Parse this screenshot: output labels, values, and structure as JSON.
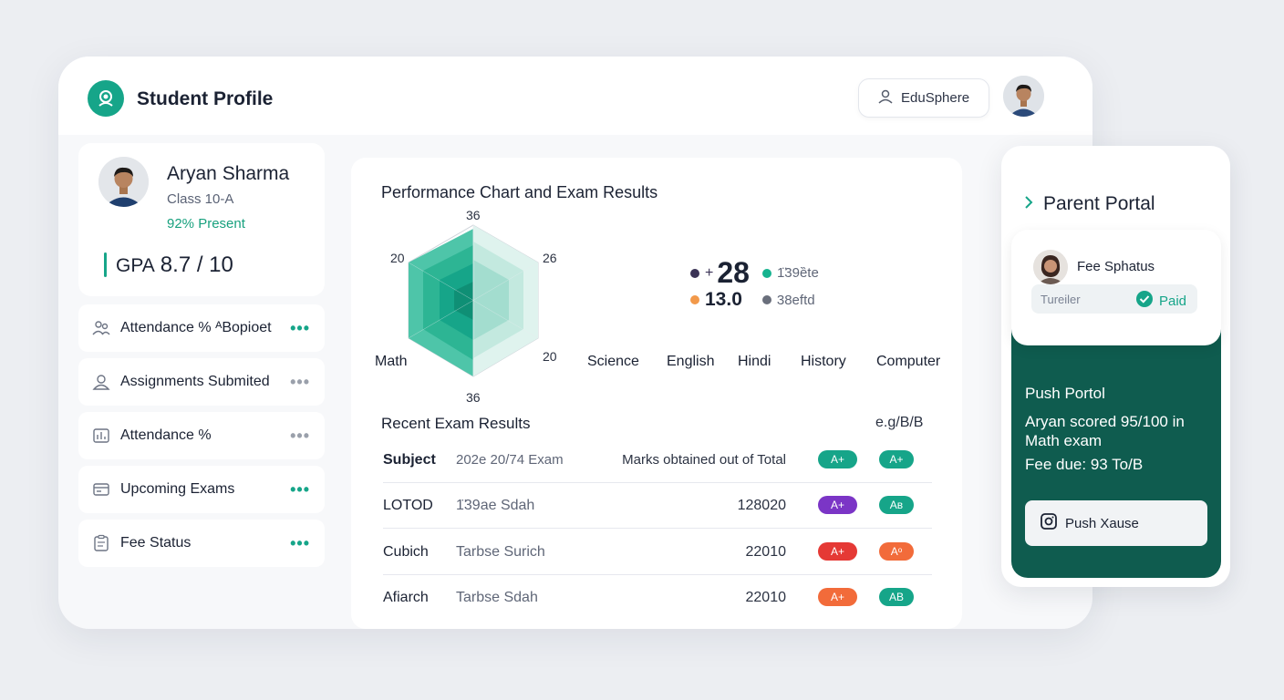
{
  "header": {
    "title": "Student Profile",
    "org_button": "EduSphere"
  },
  "profile": {
    "name": "Aryan Sharma",
    "class": "Class 10-A",
    "attendance": "92% Present",
    "gpa_label": "GPA",
    "gpa_value": "8.7 / 10"
  },
  "sidebar": {
    "items": [
      {
        "label": "Attendance % ᴬBopioet",
        "icon": "people-icon",
        "dots": "green"
      },
      {
        "label": "Assignments Submited",
        "icon": "user-icon",
        "dots": "gray"
      },
      {
        "label": "Attendance %",
        "icon": "chart-icon",
        "dots": "gray"
      },
      {
        "label": "Upcoming Exams",
        "icon": "card-icon",
        "dots": "green"
      },
      {
        "label": "Fee Status",
        "icon": "clipboard-icon",
        "dots": "green"
      }
    ]
  },
  "performance": {
    "title": "Performance Chart and Exam Results",
    "radar_labels": {
      "top": "36",
      "left": "20",
      "right": "26",
      "bottom_right": "20",
      "bottom": "36",
      "subject": "Math"
    },
    "stats": [
      {
        "prefix": "+",
        "value": "28",
        "color": "#3b3356",
        "tag": "1̈39ȅte",
        "tag_color": "#16b38f"
      },
      {
        "prefix": "",
        "value": "13.0",
        "color": "#f2994a",
        "tag": "38eftd",
        "tag_color": "#6a6f7c"
      }
    ],
    "subjects": [
      "Science",
      "English",
      "Hindi",
      "History",
      "Computer"
    ]
  },
  "exams": {
    "title": "Recent Exam Results",
    "grade_scale": "e.g/B/B",
    "header": {
      "subject": "Subject",
      "exam": "202e 20/74 Exam",
      "marks": "Marks obtained out of Total",
      "g1": "A+",
      "g1_color": "#16a589",
      "g2": "A+",
      "g2_color": "#16a589"
    },
    "rows": [
      {
        "subject": "LOTOD",
        "exam": "1̈39ae Sdah",
        "marks": "128020",
        "g1": "A+",
        "g1_color": "#7b35c6",
        "g2": "Aʙ",
        "g2_color": "#16a589"
      },
      {
        "subject": "Cubich",
        "exam": "Tarbse Surich",
        "marks": "22010",
        "g1": "A+",
        "g1_color": "#e53935",
        "g2": "Aᵒ",
        "g2_color": "#f26b3a"
      },
      {
        "subject": "Afiarch",
        "exam": "Tarbse Sdah",
        "marks": "22010",
        "g1": "A+",
        "g1_color": "#f26b3a",
        "g2": "AB",
        "g2_color": "#16a589"
      }
    ]
  },
  "parent_portal": {
    "title": "Parent Portal",
    "fee_title": "Fee Sphatus",
    "fee_label": "Tureiler",
    "fee_status": "Paid",
    "push_title": "Push Portol",
    "push_message": "Aryan scored 95/100 in Math exam",
    "fee_due": "Fee due: 93 To/B",
    "push_button": "Push Xause"
  },
  "colors": {
    "accent": "#16a589",
    "portal_green": "#0f5c4f"
  }
}
